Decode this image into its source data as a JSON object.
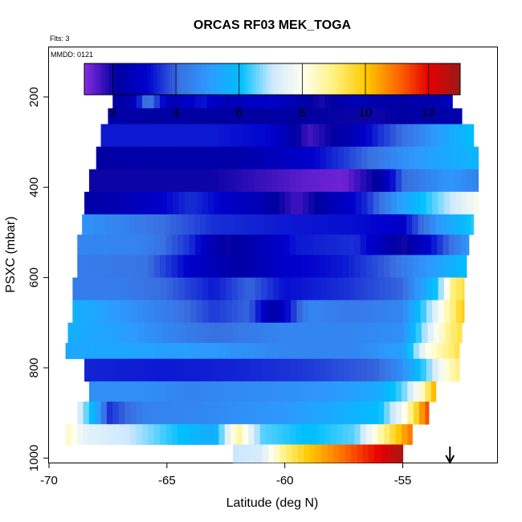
{
  "chart_data": {
    "type": "heatmap",
    "title": "ORCAS RF03 MEK_TOGA",
    "flights_note": "Flts: 3",
    "date_note": "MMDD: 0121",
    "xlabel": "Latitude (deg N)",
    "ylabel": "PSXC (mbar)",
    "xlim": [
      -70,
      -51
    ],
    "ylim": [
      1010,
      90
    ],
    "x_ticks": [
      -70,
      -65,
      -60,
      -55
    ],
    "x_tick_labels": [
      "-70",
      "-65",
      "-60",
      "-55"
    ],
    "y_ticks": [
      200,
      400,
      600,
      800,
      1000
    ],
    "y_tick_labels": [
      "200",
      "400",
      "600",
      "800",
      "1000"
    ],
    "colorbar": {
      "min": 1.1,
      "max": 13,
      "ticks": [
        2,
        4,
        6,
        8,
        10,
        12
      ],
      "tick_labels": [
        "2",
        "4",
        "6",
        "8",
        "10",
        "12"
      ],
      "palette": [
        "#8a2be2",
        "#0000a0",
        "#0000cd",
        "#3a6fe0",
        "#2c9bff",
        "#00bfff",
        "#cfe9ff",
        "#ffffee",
        "#fff07a",
        "#ffc800",
        "#ff6a00",
        "#e60000",
        "#9a1a1a"
      ]
    },
    "arrow_marker_lat": -53.0,
    "layers": [
      {
        "p_top": 175,
        "p_bot": 225,
        "lat_min": -67.3,
        "lat_max": -52.9,
        "stops": [
          [
            -67.3,
            2.0
          ],
          [
            -66.5,
            2.5
          ],
          [
            -65.8,
            4.4
          ],
          [
            -64.8,
            2.4
          ],
          [
            -63.5,
            3.3
          ],
          [
            -62.5,
            2.5
          ],
          [
            -60.5,
            3.0
          ],
          [
            -58.5,
            1.9
          ],
          [
            -57.0,
            2.6
          ],
          [
            -55.5,
            2.2
          ],
          [
            -53.5,
            2.4
          ],
          [
            -52.9,
            2.8
          ]
        ]
      },
      {
        "p_top": 225,
        "p_bot": 260,
        "lat_min": -67.5,
        "lat_max": -52.5,
        "stops": [
          [
            -67.5,
            2.2
          ],
          [
            -64.0,
            2.1
          ],
          [
            -60.0,
            2.1
          ],
          [
            -56.0,
            2.0
          ],
          [
            -52.5,
            2.4
          ]
        ]
      },
      {
        "p_top": 260,
        "p_bot": 310,
        "lat_min": -67.8,
        "lat_max": -52.0,
        "stops": [
          [
            -67.8,
            3.3
          ],
          [
            -63.0,
            3.3
          ],
          [
            -60.5,
            3.1
          ],
          [
            -59.0,
            1.6
          ],
          [
            -57.5,
            2.3
          ],
          [
            -56.0,
            3.5
          ],
          [
            -54.5,
            4.4
          ],
          [
            -53.0,
            5.5
          ],
          [
            -52.0,
            6.0
          ]
        ]
      },
      {
        "p_top": 310,
        "p_bot": 360,
        "lat_min": -68.0,
        "lat_max": -51.8,
        "stops": [
          [
            -68.0,
            2.2
          ],
          [
            -62.0,
            2.3
          ],
          [
            -59.0,
            3.0
          ],
          [
            -57.0,
            3.8
          ],
          [
            -55.0,
            4.8
          ],
          [
            -53.0,
            5.5
          ],
          [
            -51.8,
            5.8
          ]
        ]
      },
      {
        "p_top": 360,
        "p_bot": 410,
        "lat_min": -68.3,
        "lat_max": -51.8,
        "stops": [
          [
            -68.3,
            2.0
          ],
          [
            -63.0,
            2.0
          ],
          [
            -61.0,
            1.7
          ],
          [
            -59.0,
            1.4
          ],
          [
            -57.5,
            1.3
          ],
          [
            -56.0,
            2.2
          ],
          [
            -55.0,
            4.0
          ],
          [
            -53.0,
            5.0
          ],
          [
            -51.8,
            4.5
          ]
        ]
      },
      {
        "p_top": 410,
        "p_bot": 460,
        "lat_min": -68.5,
        "lat_max": -51.8,
        "stops": [
          [
            -68.5,
            2.2
          ],
          [
            -66.5,
            2.6
          ],
          [
            -64.0,
            3.5
          ],
          [
            -61.0,
            2.5
          ],
          [
            -59.5,
            1.6
          ],
          [
            -58.0,
            2.5
          ],
          [
            -56.5,
            3.5
          ],
          [
            -54.5,
            5.8
          ],
          [
            -52.0,
            7.8
          ],
          [
            -51.8,
            8.0
          ]
        ]
      },
      {
        "p_top": 460,
        "p_bot": 505,
        "lat_min": -68.6,
        "lat_max": -52.0,
        "stops": [
          [
            -68.6,
            4.9
          ],
          [
            -66.0,
            4.3
          ],
          [
            -63.0,
            3.5
          ],
          [
            -60.0,
            3.3
          ],
          [
            -57.0,
            3.2
          ],
          [
            -55.0,
            3.0
          ],
          [
            -53.5,
            5.0
          ],
          [
            -52.0,
            6.3
          ]
        ]
      },
      {
        "p_top": 505,
        "p_bot": 550,
        "lat_min": -68.8,
        "lat_max": -52.2,
        "stops": [
          [
            -68.8,
            4.6
          ],
          [
            -66.0,
            4.5
          ],
          [
            -64.0,
            3.5
          ],
          [
            -62.5,
            2.0
          ],
          [
            -61.0,
            2.6
          ],
          [
            -59.5,
            3.3
          ],
          [
            -57.0,
            3.5
          ],
          [
            -55.0,
            1.9
          ],
          [
            -53.5,
            3.5
          ],
          [
            -52.2,
            5.0
          ]
        ]
      },
      {
        "p_top": 550,
        "p_bot": 600,
        "lat_min": -68.8,
        "lat_max": -52.3,
        "stops": [
          [
            -68.8,
            4.4
          ],
          [
            -66.0,
            4.2
          ],
          [
            -64.0,
            3.0
          ],
          [
            -62.0,
            2.2
          ],
          [
            -60.0,
            3.0
          ],
          [
            -57.5,
            3.3
          ],
          [
            -55.5,
            4.0
          ],
          [
            -53.5,
            5.3
          ],
          [
            -52.3,
            6.0
          ]
        ]
      },
      {
        "p_top": 600,
        "p_bot": 650,
        "lat_min": -69.0,
        "lat_max": -52.4,
        "stops": [
          [
            -69.0,
            4.4
          ],
          [
            -67.0,
            4.4
          ],
          [
            -65.0,
            4.0
          ],
          [
            -63.0,
            3.3
          ],
          [
            -61.5,
            4.0
          ],
          [
            -60.0,
            3.2
          ],
          [
            -57.5,
            3.5
          ],
          [
            -55.0,
            4.0
          ],
          [
            -53.5,
            6.3
          ],
          [
            -52.9,
            9.0
          ],
          [
            -52.4,
            9.5
          ]
        ]
      },
      {
        "p_top": 650,
        "p_bot": 700,
        "lat_min": -69.0,
        "lat_max": -52.4,
        "stops": [
          [
            -69.0,
            5.7
          ],
          [
            -67.0,
            5.0
          ],
          [
            -65.0,
            4.4
          ],
          [
            -63.0,
            3.6
          ],
          [
            -61.5,
            4.0
          ],
          [
            -60.5,
            2.2
          ],
          [
            -59.0,
            4.6
          ],
          [
            -57.0,
            4.3
          ],
          [
            -55.0,
            4.6
          ],
          [
            -53.8,
            7.0
          ],
          [
            -52.9,
            9.0
          ],
          [
            -52.4,
            10.0
          ]
        ]
      },
      {
        "p_top": 700,
        "p_bot": 745,
        "lat_min": -69.2,
        "lat_max": -52.5,
        "stops": [
          [
            -69.2,
            5.6
          ],
          [
            -67.0,
            5.2
          ],
          [
            -65.0,
            4.6
          ],
          [
            -63.0,
            4.1
          ],
          [
            -60.0,
            4.6
          ],
          [
            -57.0,
            4.6
          ],
          [
            -55.0,
            4.8
          ],
          [
            -53.8,
            7.5
          ],
          [
            -53.0,
            9.0
          ],
          [
            -52.5,
            9.5
          ]
        ]
      },
      {
        "p_top": 745,
        "p_bot": 780,
        "lat_min": -69.3,
        "lat_max": -52.6,
        "stops": [
          [
            -69.3,
            5.4
          ],
          [
            -67.0,
            5.4
          ],
          [
            -65.0,
            5.2
          ],
          [
            -63.0,
            5.0
          ],
          [
            -60.0,
            4.6
          ],
          [
            -57.0,
            4.6
          ],
          [
            -55.0,
            5.2
          ],
          [
            -54.0,
            8.0
          ],
          [
            -53.0,
            9.0
          ],
          [
            -52.6,
            9.5
          ]
        ]
      },
      {
        "p_top": 780,
        "p_bot": 830,
        "lat_min": -68.5,
        "lat_max": -52.6,
        "stops": [
          [
            -68.5,
            3.4
          ],
          [
            -65.0,
            3.3
          ],
          [
            -62.0,
            3.4
          ],
          [
            -59.0,
            3.6
          ],
          [
            -56.0,
            4.0
          ],
          [
            -55.0,
            4.8
          ],
          [
            -54.0,
            6.5
          ],
          [
            -53.0,
            8.5
          ],
          [
            -52.6,
            9.0
          ]
        ]
      },
      {
        "p_top": 830,
        "p_bot": 875,
        "lat_min": -68.3,
        "lat_max": -53.6,
        "stops": [
          [
            -68.3,
            4.8
          ],
          [
            -66.0,
            4.8
          ],
          [
            -64.0,
            4.5
          ],
          [
            -62.0,
            4.7
          ],
          [
            -60.0,
            4.8
          ],
          [
            -58.0,
            5.0
          ],
          [
            -56.0,
            5.5
          ],
          [
            -55.0,
            6.5
          ],
          [
            -54.2,
            8.3
          ],
          [
            -53.6,
            10.5
          ]
        ]
      },
      {
        "p_top": 875,
        "p_bot": 925,
        "lat_min": -68.8,
        "lat_max": -53.9,
        "stops": [
          [
            -68.8,
            7.5
          ],
          [
            -68.0,
            5.5
          ],
          [
            -67.5,
            3.5
          ],
          [
            -66.0,
            4.5
          ],
          [
            -64.0,
            4.6
          ],
          [
            -62.0,
            4.8
          ],
          [
            -60.0,
            5.0
          ],
          [
            -58.0,
            5.5
          ],
          [
            -56.0,
            6.0
          ],
          [
            -55.0,
            7.8
          ],
          [
            -54.4,
            9.8
          ],
          [
            -53.9,
            11.5
          ]
        ]
      },
      {
        "p_top": 925,
        "p_bot": 970,
        "lat_min": -69.3,
        "lat_max": -54.6,
        "stops": [
          [
            -69.3,
            8.5
          ],
          [
            -68.5,
            7.5
          ],
          [
            -66.5,
            7.0
          ],
          [
            -65.0,
            6.3
          ],
          [
            -63.0,
            5.5
          ],
          [
            -62.0,
            8.8
          ],
          [
            -61.0,
            6.5
          ],
          [
            -59.0,
            6.0
          ],
          [
            -57.0,
            6.5
          ],
          [
            -56.0,
            8.5
          ],
          [
            -55.3,
            9.8
          ],
          [
            -54.6,
            11.0
          ]
        ]
      },
      {
        "p_top": 970,
        "p_bot": 1010,
        "lat_min": -62.2,
        "lat_max": -55.0,
        "stops": [
          [
            -62.2,
            7.0
          ],
          [
            -61.0,
            7.2
          ],
          [
            -60.0,
            9.0
          ],
          [
            -59.0,
            10.0
          ],
          [
            -57.5,
            11.0
          ],
          [
            -56.0,
            12.0
          ],
          [
            -55.0,
            12.8
          ]
        ]
      }
    ]
  }
}
